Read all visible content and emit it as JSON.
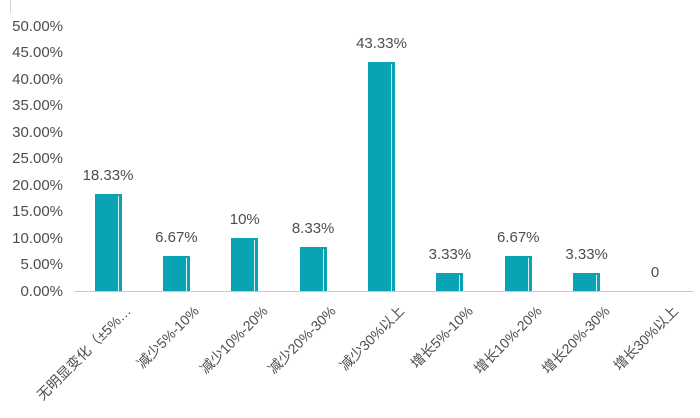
{
  "chart_data": {
    "type": "bar",
    "categories": [
      "无明显变化（±5%…",
      "减少5%-10%",
      "减少10%-20%",
      "减少20%-30%",
      "减少30%以上",
      "增长5%-10%",
      "增长10%-20%",
      "增长20%-30%",
      "增长30%以上"
    ],
    "values": [
      18.33,
      6.67,
      10,
      8.33,
      43.33,
      3.33,
      6.67,
      3.33,
      0
    ],
    "value_labels": [
      "18.33%",
      "6.67%",
      "10%",
      "8.33%",
      "43.33%",
      "3.33%",
      "6.67%",
      "3.33%",
      "0"
    ],
    "y_axis": {
      "ticks": [
        "0.00%",
        "5.00%",
        "10.00%",
        "15.00%",
        "20.00%",
        "25.00%",
        "30.00%",
        "35.00%",
        "40.00%",
        "45.00%",
        "50.00%"
      ],
      "min": 0,
      "max": 50,
      "step": 5
    },
    "x_tick_rotation_deg": -45,
    "grid": false,
    "legend": null,
    "colors": {
      "bar": "#0AA3B3",
      "axis_line": "#C9C9C9",
      "text": "#4A4D52"
    }
  }
}
